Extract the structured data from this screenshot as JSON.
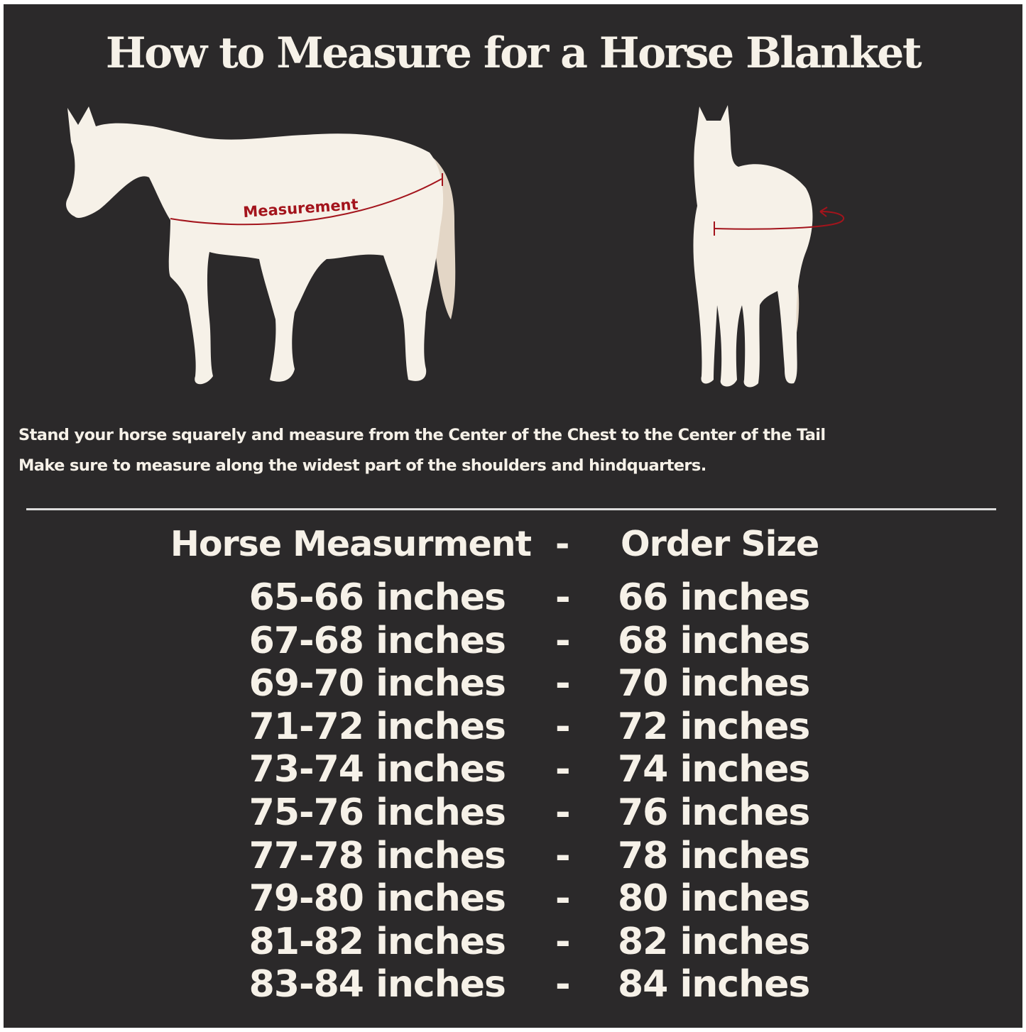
{
  "title": "How to Measure for a Horse Blanket",
  "diagram": {
    "measurement_label": "Measurement",
    "horse_color": "#f6f1e8",
    "tail_color": "#e3d6c6",
    "measure_line_color": "#a3141c"
  },
  "instructions": [
    "Stand your horse squarely and measure from the Center of the Chest to the Center of the Tail",
    "Make sure to measure along the widest part of the shoulders and hindquarters."
  ],
  "table": {
    "headers": {
      "measurement": "Horse Measurment",
      "separator": "-",
      "size": "Order Size"
    },
    "rows": [
      {
        "measurement": "65-66 inches",
        "separator": "-",
        "size": "66 inches"
      },
      {
        "measurement": "67-68 inches",
        "separator": "-",
        "size": "68 inches"
      },
      {
        "measurement": "69-70 inches",
        "separator": "-",
        "size": "70 inches"
      },
      {
        "measurement": "71-72 inches",
        "separator": "-",
        "size": "72 inches"
      },
      {
        "measurement": "73-74 inches",
        "separator": "-",
        "size": "74 inches"
      },
      {
        "measurement": "75-76 inches",
        "separator": "-",
        "size": "76 inches"
      },
      {
        "measurement": "77-78 inches",
        "separator": "-",
        "size": "78 inches"
      },
      {
        "measurement": "79-80 inches",
        "separator": "-",
        "size": "80 inches"
      },
      {
        "measurement": "81-82 inches",
        "separator": "-",
        "size": "82 inches"
      },
      {
        "measurement": "83-84 inches",
        "separator": "-",
        "size": "84 inches"
      }
    ]
  },
  "colors": {
    "background": "#2b292a",
    "text": "#f6f1e8"
  }
}
